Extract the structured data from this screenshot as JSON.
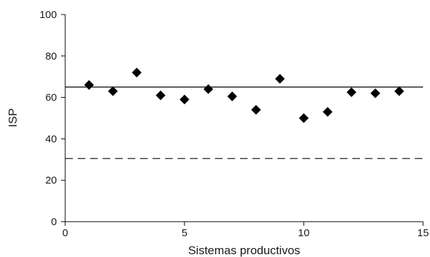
{
  "chart_data": {
    "type": "scatter",
    "title": "",
    "xlabel": "Sistemas productivos",
    "ylabel": "ISP",
    "xlim": [
      0,
      15
    ],
    "ylim": [
      0,
      100
    ],
    "x_ticks": [
      0,
      5,
      10,
      15
    ],
    "y_ticks": [
      0,
      20,
      40,
      60,
      80,
      100
    ],
    "grid": false,
    "legend": "none",
    "marker": "diamond",
    "marker_color": "#000000",
    "series": [
      {
        "x": [
          1,
          2,
          3,
          4,
          5,
          6,
          7,
          8,
          9,
          10,
          11,
          12,
          13,
          14
        ],
        "y": [
          66,
          63,
          72,
          61,
          59,
          64,
          60.5,
          54,
          69,
          50,
          53,
          62.5,
          62,
          63
        ]
      }
    ],
    "reference_lines": [
      {
        "y": 65,
        "style": "solid",
        "color": "#000000"
      },
      {
        "y": 30.5,
        "style": "dashed",
        "color": "#000000"
      }
    ]
  }
}
